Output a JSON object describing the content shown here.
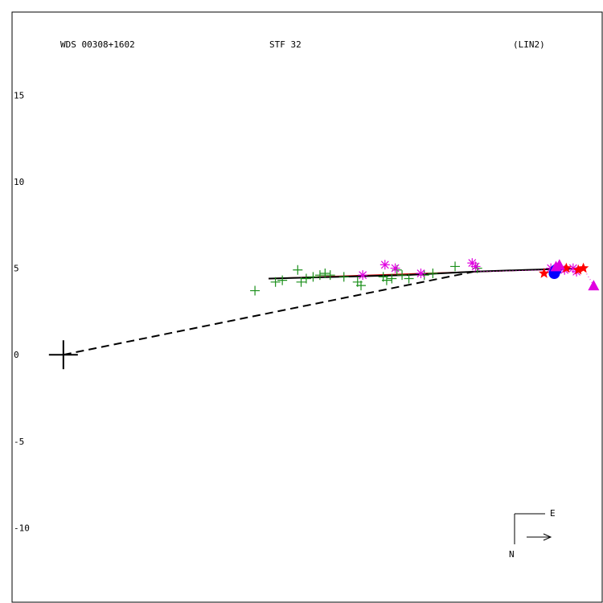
{
  "chart_data": {
    "type": "scatter",
    "header": {
      "left": "WDS 00308+1602",
      "center": "STF  32",
      "right": "(LIN2)"
    },
    "ytick_labels": [
      "15",
      "10",
      "5",
      "0",
      "-5",
      "-10"
    ],
    "yticks": [
      15,
      10,
      5,
      0,
      -5,
      -10
    ],
    "xlim": [
      -3.0,
      31.5
    ],
    "ylim": [
      -14.3,
      19.8
    ],
    "primary": [
      0,
      0
    ],
    "compass": {
      "east": "E",
      "north": "N"
    },
    "colors": {
      "green": "#1a8f1a",
      "magenta": "#e000e0",
      "red": "#ff0000",
      "blue": "#0000ff",
      "orbit": "#000000",
      "fit": "#cc0000"
    },
    "series": [
      {
        "marker": "plus",
        "color": "green",
        "points": [
          [
            11.2,
            3.7
          ],
          [
            12.4,
            4.2
          ],
          [
            12.8,
            4.3
          ],
          [
            13.7,
            4.9
          ],
          [
            13.9,
            4.2
          ],
          [
            14.2,
            4.4
          ],
          [
            14.6,
            4.5
          ],
          [
            15.0,
            4.6
          ],
          [
            15.3,
            4.7
          ],
          [
            15.6,
            4.6
          ],
          [
            16.4,
            4.5
          ],
          [
            17.2,
            4.2
          ],
          [
            17.4,
            4.0
          ],
          [
            18.7,
            4.5
          ],
          [
            18.9,
            4.3
          ],
          [
            19.2,
            4.4
          ],
          [
            19.5,
            4.9
          ],
          [
            19.8,
            4.6
          ],
          [
            20.2,
            4.4
          ],
          [
            21.1,
            4.6
          ],
          [
            21.6,
            4.7
          ],
          [
            22.9,
            5.1
          ],
          [
            24.2,
            5.0
          ]
        ]
      },
      {
        "marker": "asterisk",
        "color": "magenta",
        "points": [
          [
            17.5,
            4.6
          ],
          [
            18.8,
            5.2
          ],
          [
            19.4,
            5.0
          ],
          [
            20.9,
            4.7
          ],
          [
            23.9,
            5.3
          ],
          [
            24.1,
            5.1
          ],
          [
            28.5,
            5.0
          ],
          [
            29.3,
            4.9
          ],
          [
            29.8,
            5.0
          ],
          [
            30.0,
            4.8
          ]
        ]
      },
      {
        "marker": "star",
        "color": "red",
        "points": [
          [
            28.1,
            4.7
          ],
          [
            29.4,
            5.0
          ],
          [
            30.1,
            4.9
          ],
          [
            30.4,
            5.0
          ]
        ]
      },
      {
        "marker": "circle",
        "color": "blue",
        "points": [
          [
            28.7,
            4.7
          ],
          [
            28.8,
            4.9
          ]
        ]
      },
      {
        "marker": "triangle",
        "color": "magenta",
        "points": [
          [
            28.8,
            5.1
          ],
          [
            29.0,
            5.2
          ],
          [
            31.0,
            4.0
          ]
        ]
      }
    ],
    "fit_line": [
      [
        12.0,
        4.4
      ],
      [
        30.4,
        5.0
      ]
    ],
    "orbit_line": [
      [
        12.0,
        4.4
      ],
      [
        16.0,
        4.5
      ],
      [
        20.0,
        4.6
      ],
      [
        24.0,
        4.8
      ],
      [
        27.0,
        4.9
      ],
      [
        30.4,
        5.0
      ]
    ],
    "node_line": [
      [
        0,
        0
      ],
      [
        24.0,
        4.8
      ]
    ],
    "observation_arrows": [
      [
        [
          24.0,
          4.8
        ],
        [
          28.5,
          4.9
        ]
      ],
      [
        [
          30.4,
          5.0
        ],
        [
          31.0,
          4.0
        ]
      ]
    ]
  }
}
